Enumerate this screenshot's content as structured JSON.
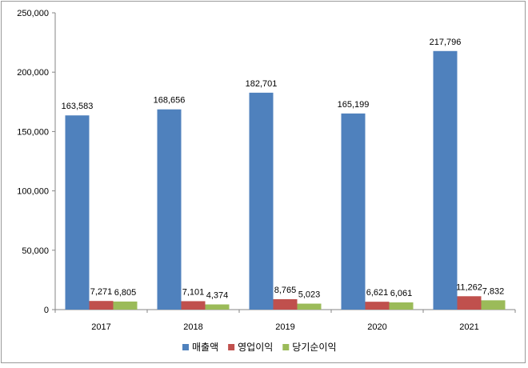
{
  "chart_data": {
    "type": "bar",
    "categories": [
      "2017",
      "2018",
      "2019",
      "2020",
      "2021"
    ],
    "series": [
      {
        "name": "매출액",
        "color": "#4F81BD",
        "values": [
          163583,
          168656,
          182701,
          165199,
          217796
        ]
      },
      {
        "name": "영업이익",
        "color": "#C0504D",
        "values": [
          7271,
          7101,
          8765,
          6621,
          11262
        ]
      },
      {
        "name": "당기순이익",
        "color": "#9BBB59",
        "values": [
          6805,
          4374,
          5023,
          6061,
          7832
        ]
      }
    ],
    "ylim": [
      0,
      250000
    ],
    "yticks": [
      0,
      50000,
      100000,
      150000,
      200000,
      250000
    ],
    "ytick_labels": [
      "0",
      "50,000",
      "100,000",
      "150,000",
      "200,000",
      "250,000"
    ],
    "data_labels": [
      [
        "163,583",
        "168,656",
        "182,701",
        "165,199",
        "217,796"
      ],
      [
        "7,271",
        "7,101",
        "8,765",
        "6,621",
        "11,262"
      ],
      [
        "6,805",
        "4,374",
        "5,023",
        "6,061",
        "7,832"
      ]
    ],
    "title": "",
    "xlabel": "",
    "ylabel": "",
    "grid": false,
    "legend_position": "bottom"
  }
}
